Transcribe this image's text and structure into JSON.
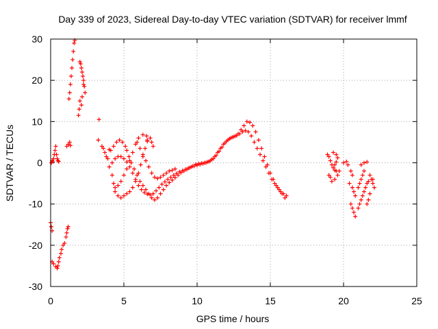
{
  "chart_data": {
    "type": "scatter",
    "title": "Day 339 of 2023, Sidereal Day-to-day VTEC variation (SDTVAR) for receiver lmmf",
    "xlabel": "GPS time / hours",
    "ylabel": "SDTVAR / TECUs",
    "xlim": [
      0,
      25
    ],
    "ylim": [
      -30,
      30
    ],
    "xticks": [
      0,
      5,
      10,
      15,
      20,
      25
    ],
    "yticks": [
      -30,
      -20,
      -10,
      0,
      10,
      20,
      30
    ],
    "xtick_labels": [
      "0",
      "5",
      "10",
      "15",
      "20",
      "25"
    ],
    "ytick_labels": [
      "-30",
      "-20",
      "-10",
      "0",
      "10",
      "20",
      "30"
    ],
    "grid": true,
    "marker": "+",
    "color": "#ff0000",
    "segments": [
      {
        "name": "early-low",
        "points": [
          [
            0.0,
            -14.5
          ],
          [
            0.05,
            -15.5
          ],
          [
            0.1,
            -16.5
          ],
          [
            0.1,
            -24
          ],
          [
            0.2,
            -24.5
          ],
          [
            0.35,
            -25.2
          ],
          [
            0.45,
            -25.6
          ],
          [
            0.5,
            -25
          ],
          [
            0.55,
            -24
          ],
          [
            0.6,
            -23
          ],
          [
            0.7,
            -22
          ],
          [
            0.75,
            -21
          ],
          [
            0.85,
            -20
          ],
          [
            0.95,
            -19.5
          ],
          [
            1.05,
            -18
          ],
          [
            1.1,
            -17
          ],
          [
            1.15,
            -16
          ],
          [
            1.2,
            -15.5
          ]
        ]
      },
      {
        "name": "early-zero",
        "points": [
          [
            0.05,
            0
          ],
          [
            0.1,
            0.5
          ],
          [
            0.15,
            0.3
          ],
          [
            0.2,
            1
          ],
          [
            0.25,
            2
          ],
          [
            0.3,
            3
          ],
          [
            0.35,
            4
          ],
          [
            0.4,
            2
          ],
          [
            0.45,
            1
          ],
          [
            0.5,
            0.5
          ],
          [
            0.55,
            0.3
          ]
        ]
      },
      {
        "name": "early-mid",
        "points": [
          [
            1.1,
            4
          ],
          [
            1.2,
            4.5
          ],
          [
            1.3,
            5
          ],
          [
            1.35,
            4.2
          ]
        ]
      },
      {
        "name": "early-rise",
        "points": [
          [
            1.25,
            15.5
          ],
          [
            1.3,
            17
          ],
          [
            1.35,
            19
          ],
          [
            1.4,
            21
          ],
          [
            1.45,
            23
          ],
          [
            1.5,
            25
          ],
          [
            1.55,
            27
          ],
          [
            1.6,
            29
          ],
          [
            1.65,
            29.7
          ]
        ]
      },
      {
        "name": "early-high",
        "points": [
          [
            1.9,
            11.5
          ],
          [
            1.95,
            13
          ],
          [
            2.0,
            15
          ],
          [
            2.0,
            24.5
          ],
          [
            2.05,
            24
          ],
          [
            2.1,
            23
          ],
          [
            2.15,
            22
          ],
          [
            2.2,
            21
          ],
          [
            2.25,
            20
          ],
          [
            2.3,
            18.5
          ],
          [
            2.35,
            17
          ],
          [
            2.1,
            14
          ],
          [
            2.15,
            16
          ],
          [
            2.25,
            19
          ]
        ]
      },
      {
        "name": "isolated",
        "points": [
          [
            3.3,
            10.5
          ],
          [
            3.25,
            5.5
          ]
        ]
      },
      {
        "name": "cluster-start",
        "points": [
          [
            3.5,
            4
          ],
          [
            3.6,
            3.5
          ],
          [
            3.7,
            2.5
          ],
          [
            3.8,
            1.5
          ],
          [
            3.9,
            1
          ]
        ]
      },
      {
        "name": "trace-a",
        "points": [
          [
            4.0,
            3.2
          ],
          [
            4.1,
            3
          ],
          [
            4.3,
            4
          ],
          [
            4.5,
            5
          ],
          [
            4.7,
            5.5
          ],
          [
            4.9,
            5
          ],
          [
            5.1,
            4
          ],
          [
            5.2,
            3
          ],
          [
            5.35,
            1.5
          ],
          [
            5.5,
            0
          ],
          [
            5.7,
            -1.5
          ],
          [
            5.9,
            -3
          ],
          [
            6.1,
            -4.5
          ],
          [
            6.3,
            -5.5
          ],
          [
            6.5,
            -6.5
          ],
          [
            6.7,
            -7.5
          ],
          [
            6.9,
            -8.5
          ],
          [
            7.1,
            -9
          ],
          [
            7.3,
            -8.5
          ],
          [
            7.5,
            -7.5
          ],
          [
            7.7,
            -6.5
          ],
          [
            7.9,
            -5.5
          ],
          [
            8.1,
            -4.8
          ],
          [
            8.3,
            -4.2
          ],
          [
            8.5,
            -3.6
          ],
          [
            8.7,
            -3
          ],
          [
            8.9,
            -2.4
          ],
          [
            9.1,
            -2
          ],
          [
            9.3,
            -1.6
          ],
          [
            9.5,
            -1.2
          ],
          [
            9.7,
            -0.8
          ],
          [
            9.9,
            -0.4
          ],
          [
            10.1,
            -0.2
          ],
          [
            10.3,
            -0.1
          ],
          [
            10.5,
            0
          ],
          [
            10.7,
            0.2
          ],
          [
            10.9,
            0.5
          ],
          [
            11.1,
            1
          ],
          [
            11.3,
            1.8
          ],
          [
            11.5,
            2.8
          ],
          [
            11.7,
            3.8
          ],
          [
            11.9,
            4.8
          ],
          [
            12.1,
            5.5
          ],
          [
            12.3,
            6
          ],
          [
            12.5,
            6.3
          ],
          [
            12.7,
            6.6
          ],
          [
            12.9,
            7
          ],
          [
            13.1,
            7.5
          ],
          [
            13.3,
            7.8
          ],
          [
            13.5,
            7.5
          ],
          [
            13.7,
            6.5
          ],
          [
            13.9,
            5
          ],
          [
            14.1,
            3.5
          ],
          [
            14.3,
            2
          ],
          [
            14.5,
            0.5
          ],
          [
            14.7,
            -1
          ],
          [
            14.9,
            -2.5
          ],
          [
            15.1,
            -4
          ],
          [
            15.3,
            -5
          ],
          [
            15.5,
            -6
          ],
          [
            15.7,
            -7
          ],
          [
            15.9,
            -7.5
          ],
          [
            16.1,
            -8
          ]
        ]
      },
      {
        "name": "trace-b",
        "points": [
          [
            4.2,
            -3
          ],
          [
            4.3,
            -5
          ],
          [
            4.4,
            -7
          ],
          [
            4.6,
            -8
          ],
          [
            4.8,
            -8.5
          ],
          [
            5.0,
            -8
          ],
          [
            5.2,
            -7.5
          ],
          [
            5.4,
            -7
          ],
          [
            5.6,
            -6
          ],
          [
            5.8,
            -4.5
          ],
          [
            6.0,
            -2.5
          ],
          [
            6.15,
            -0.5
          ],
          [
            6.3,
            1.5
          ],
          [
            6.45,
            3.5
          ],
          [
            6.6,
            5.2
          ],
          [
            6.55,
            6.5
          ],
          [
            6.3,
            6.8
          ],
          [
            6.0,
            6
          ],
          [
            5.8,
            4.5
          ],
          [
            5.6,
            2.5
          ],
          [
            5.4,
            0.5
          ],
          [
            5.2,
            -1.5
          ],
          [
            5.0,
            -3
          ],
          [
            4.8,
            -4.5
          ],
          [
            4.6,
            -5.5
          ],
          [
            4.4,
            -6
          ]
        ]
      },
      {
        "name": "trace-c",
        "points": [
          [
            4.0,
            -1
          ],
          [
            4.2,
            0
          ],
          [
            4.4,
            1
          ],
          [
            4.6,
            1.5
          ],
          [
            4.8,
            1.5
          ],
          [
            5.0,
            1
          ],
          [
            5.2,
            0.2
          ],
          [
            5.4,
            -1
          ],
          [
            5.6,
            -2.5
          ],
          [
            5.8,
            -4
          ],
          [
            6.0,
            -5.5
          ],
          [
            6.2,
            -6.5
          ],
          [
            6.4,
            -7.2
          ],
          [
            6.6,
            -7.6
          ],
          [
            6.8,
            -7.8
          ],
          [
            7.0,
            -7.5
          ],
          [
            7.2,
            -6.8
          ],
          [
            7.4,
            -6
          ],
          [
            7.6,
            -5.2
          ],
          [
            7.8,
            -4.6
          ],
          [
            8.0,
            -4
          ],
          [
            8.2,
            -3.5
          ],
          [
            8.4,
            -3
          ],
          [
            8.6,
            -2.6
          ],
          [
            8.8,
            -2.2
          ],
          [
            9.0,
            -1.9
          ],
          [
            9.2,
            -1.6
          ],
          [
            9.4,
            -1.3
          ],
          [
            9.6,
            -1
          ],
          [
            9.8,
            -0.8
          ],
          [
            10.0,
            -0.6
          ],
          [
            10.2,
            -0.4
          ],
          [
            10.4,
            -0.2
          ],
          [
            10.6,
            0
          ],
          [
            10.8,
            0.3
          ],
          [
            11.0,
            0.8
          ],
          [
            11.2,
            1.5
          ],
          [
            11.4,
            2.5
          ],
          [
            11.6,
            3.5
          ],
          [
            11.8,
            4.5
          ],
          [
            12.0,
            5.2
          ],
          [
            12.2,
            5.8
          ],
          [
            12.4,
            6.2
          ],
          [
            12.6,
            6.5
          ],
          [
            12.8,
            7
          ],
          [
            13.0,
            8
          ],
          [
            13.2,
            9
          ],
          [
            13.4,
            10
          ],
          [
            13.6,
            9.8
          ],
          [
            13.8,
            9
          ],
          [
            14.0,
            7.5
          ],
          [
            14.2,
            5.5
          ],
          [
            14.4,
            3.5
          ],
          [
            14.6,
            1.5
          ],
          [
            14.8,
            -0.5
          ],
          [
            15.0,
            -2.5
          ],
          [
            15.2,
            -4
          ],
          [
            15.4,
            -5.5
          ],
          [
            15.6,
            -6.5
          ],
          [
            15.8,
            -7.5
          ],
          [
            16.0,
            -8.5
          ]
        ]
      },
      {
        "name": "trace-d",
        "points": [
          [
            5.9,
            5
          ],
          [
            6.1,
            3.5
          ],
          [
            6.3,
            2
          ],
          [
            6.5,
            0.5
          ],
          [
            6.7,
            -1
          ],
          [
            6.9,
            -2.5
          ],
          [
            7.1,
            -3.5
          ],
          [
            7.3,
            -3.8
          ],
          [
            7.5,
            -3.5
          ],
          [
            7.7,
            -3
          ],
          [
            7.9,
            -2.5
          ],
          [
            8.1,
            -2
          ],
          [
            8.3,
            -1.8
          ],
          [
            8.5,
            -1.5
          ],
          [
            6.8,
            6
          ],
          [
            6.9,
            5
          ],
          [
            7.0,
            4
          ],
          [
            6.6,
            5.5
          ]
        ]
      },
      {
        "name": "late-cluster-a",
        "points": [
          [
            18.9,
            2
          ],
          [
            19.0,
            1.5
          ],
          [
            19.1,
            0.5
          ],
          [
            19.2,
            -0.5
          ],
          [
            19.3,
            -1.2
          ],
          [
            19.4,
            -1.8
          ],
          [
            19.5,
            -2
          ],
          [
            19.3,
            2.5
          ],
          [
            19.5,
            2
          ],
          [
            19.6,
            1.2
          ],
          [
            19.5,
            0.2
          ],
          [
            19.4,
            -0.5
          ],
          [
            19.0,
            -3
          ],
          [
            19.1,
            -3.5
          ],
          [
            19.2,
            -4.5
          ],
          [
            19.4,
            -4
          ],
          [
            19.6,
            -3
          ],
          [
            19.7,
            -2
          ]
        ]
      },
      {
        "name": "late-cluster-b",
        "points": [
          [
            20.0,
            0
          ],
          [
            20.2,
            0.3
          ],
          [
            20.3,
            -0.5
          ],
          [
            20.5,
            -2
          ],
          [
            20.6,
            -3
          ],
          [
            20.4,
            -5
          ],
          [
            20.6,
            -6
          ],
          [
            20.7,
            -7
          ],
          [
            20.8,
            -8
          ],
          [
            20.5,
            -10
          ],
          [
            20.6,
            -11
          ],
          [
            20.7,
            -12
          ],
          [
            20.8,
            -13
          ],
          [
            21.0,
            -11
          ],
          [
            21.1,
            -10
          ],
          [
            21.2,
            -9
          ],
          [
            21.3,
            -8
          ],
          [
            21.4,
            -7
          ],
          [
            21.5,
            -6
          ],
          [
            21.6,
            -5
          ],
          [
            21.7,
            -4.5
          ],
          [
            21.0,
            -6
          ],
          [
            21.1,
            -5
          ],
          [
            21.2,
            -4
          ],
          [
            21.3,
            -3
          ],
          [
            21.4,
            -2
          ],
          [
            21.2,
            -0.5
          ],
          [
            21.4,
            0
          ],
          [
            21.6,
            0.2
          ],
          [
            21.8,
            -3
          ],
          [
            21.9,
            -4
          ],
          [
            22.0,
            -5
          ],
          [
            22.1,
            -6
          ],
          [
            22.0,
            -4
          ],
          [
            21.8,
            -7.5
          ],
          [
            21.7,
            -9
          ],
          [
            21.6,
            -10
          ]
        ]
      }
    ]
  }
}
